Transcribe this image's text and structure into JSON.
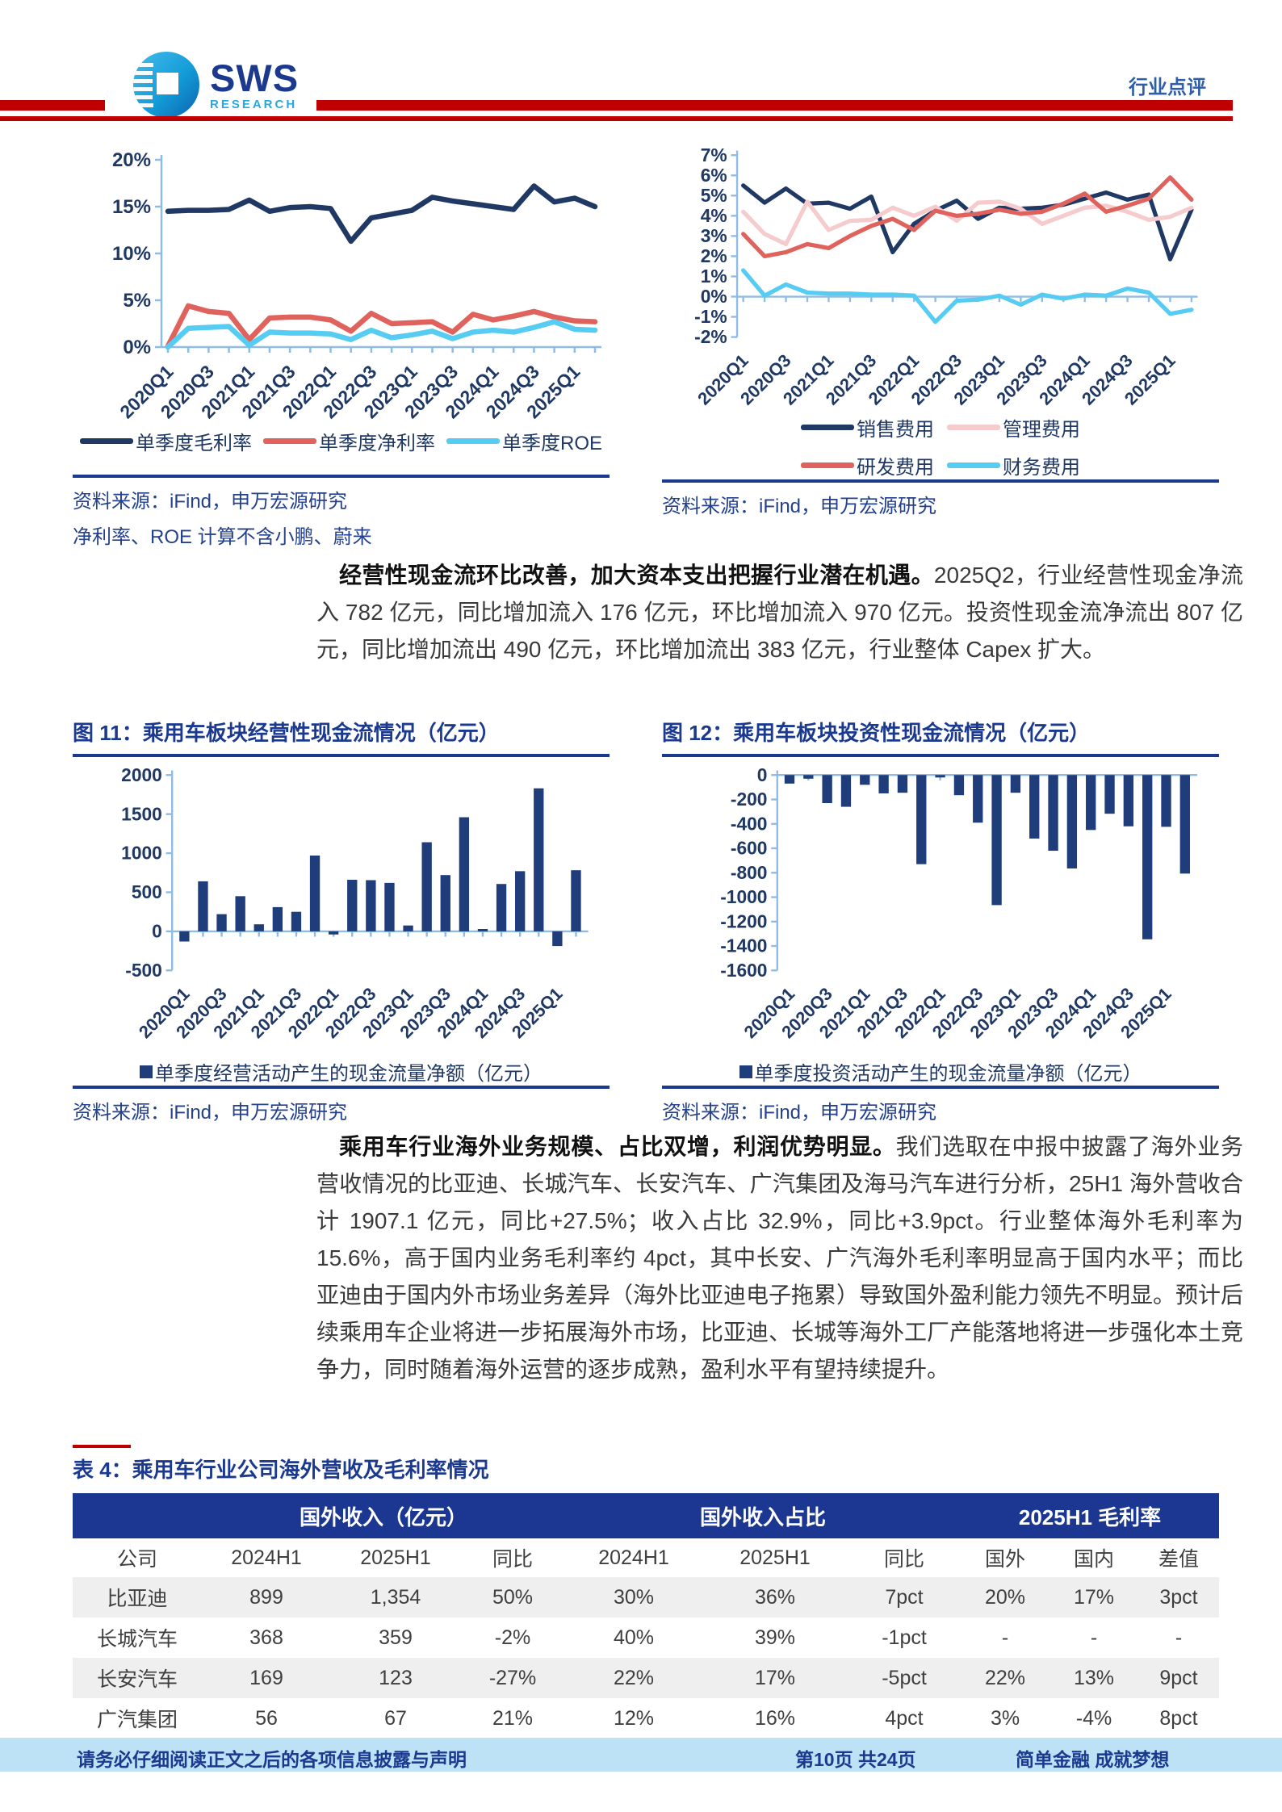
{
  "header": {
    "logo_main": "SWS",
    "logo_sub": "RESEARCH",
    "report_type": "行业点评"
  },
  "colors": {
    "navy": "#1F3864",
    "caption_blue": "#1B3A8F",
    "accent_red": "#C00000",
    "axis_blue": "#8FBCE6",
    "source_blue": "#24418E",
    "footer_bg": "#BDE2F6",
    "table_header_bg": "#1C3791",
    "row_alt": "#EFEFEF",
    "text": "#3A3A3A",
    "logo_blue": "#1B3A8F",
    "logo_light": "#29A8E0",
    "doc_type_blue": "#2E5EAA"
  },
  "figures": {
    "source": "资料来源：iFind，申万宏源研究",
    "margins_note": "净利率、ROE 计算不含小鹏、蔚来",
    "fig11_caption": "图 11：乘用车板块经营性现金流情况（亿元）",
    "fig12_caption": "图 12：乘用车板块投资性现金流情况（亿元）"
  },
  "paragraphs": [
    {
      "lead": "经营性现金流环比改善，加大资本支出把握行业潜在机遇。",
      "body": "2025Q2，行业经营性现金净流入 782 亿元，同比增加流入 176 亿元，环比增加流入 970 亿元。投资性现金流净流出 807 亿元，同比增加流出 490 亿元，环比增加流出 383 亿元，行业整体 Capex 扩大。"
    },
    {
      "lead": "乘用车行业海外业务规模、占比双增，利润优势明显。",
      "body": "我们选取在中报中披露了海外业务营收情况的比亚迪、长城汽车、长安汽车、广汽集团及海马汽车进行分析，25H1 海外营收合计 1907.1 亿元，同比+27.5%；收入占比 32.9%，同比+3.9pct。行业整体海外毛利率为 15.6%，高于国内业务毛利率约 4pct，其中长安、广汽海外毛利率明显高于国内水平；而比亚迪由于国内外市场业务差异（海外比亚迪电子拖累）导致国外盈利能力领先不明显。预计后续乘用车企业将进一步拓展海外市场，比亚迪、长城等海外工厂产能落地将进一步强化本土竞争力，同时随着海外运营的逐步成熟，盈利水平有望持续提升。"
    }
  ],
  "table": {
    "caption": "表 4：乘用车行业公司海外营收及毛利率情况",
    "group_headers": [
      "国外收入（亿元）",
      "国外收入占比",
      "2025H1 毛利率"
    ],
    "sub_headers": [
      "公司",
      "2024H1",
      "2025H1",
      "同比",
      "2024H1",
      "2025H1",
      "同比",
      "国外",
      "国内",
      "差值"
    ],
    "rows": [
      [
        "比亚迪",
        "899",
        "1,354",
        "50%",
        "30%",
        "36%",
        "7pct",
        "20%",
        "17%",
        "3pct"
      ],
      [
        "长城汽车",
        "368",
        "359",
        "-2%",
        "40%",
        "39%",
        "-1pct",
        "-",
        "-",
        "-"
      ],
      [
        "长安汽车",
        "169",
        "123",
        "-27%",
        "22%",
        "17%",
        "-5pct",
        "22%",
        "13%",
        "9pct"
      ],
      [
        "广汽集团",
        "56",
        "67",
        "21%",
        "12%",
        "16%",
        "4pct",
        "3%",
        "-4%",
        "8pct"
      ]
    ]
  },
  "footer": {
    "disclaimer": "请务必仔细阅读正文之后的各项信息披露与声明",
    "page": "第10页 共24页",
    "slogan": "简单金融 成就梦想"
  },
  "chart_data": [
    {
      "type": "line",
      "title": "单季度毛利率/净利率/ROE",
      "xlabel": "",
      "ylabel": "",
      "ylim": [
        0,
        20
      ],
      "ytick_step": 5,
      "ytick_suffix": "%",
      "xtick_every": 2,
      "grid": false,
      "legend_position": "bottom",
      "categories": [
        "2020Q1",
        "2020Q2",
        "2020Q3",
        "2020Q4",
        "2021Q1",
        "2021Q2",
        "2021Q3",
        "2021Q4",
        "2022Q1",
        "2022Q2",
        "2022Q3",
        "2022Q4",
        "2023Q1",
        "2023Q2",
        "2023Q3",
        "2023Q4",
        "2024Q1",
        "2024Q2",
        "2024Q3",
        "2024Q4",
        "2025Q1",
        "2025Q2"
      ],
      "series": [
        {
          "name": "单季度毛利率",
          "color": "#1F3864",
          "values": [
            14.5,
            14.6,
            14.6,
            14.7,
            15.7,
            14.5,
            14.9,
            15.0,
            14.8,
            11.3,
            13.8,
            14.2,
            14.6,
            16.0,
            15.6,
            15.3,
            15.0,
            14.7,
            17.2,
            15.5,
            15.9,
            15.0
          ]
        },
        {
          "name": "单季度净利率",
          "color": "#E0625C",
          "values": [
            0.1,
            4.4,
            3.8,
            3.6,
            0.8,
            3.1,
            3.2,
            3.2,
            2.9,
            1.7,
            3.6,
            2.5,
            2.6,
            2.7,
            1.6,
            3.5,
            2.9,
            3.3,
            3.8,
            3.2,
            2.8,
            2.7
          ]
        },
        {
          "name": "单季度ROE",
          "color": "#56CCF2",
          "values": [
            0.0,
            2.0,
            2.1,
            2.2,
            0.2,
            1.6,
            1.5,
            1.5,
            1.4,
            0.8,
            1.8,
            1.0,
            1.3,
            1.7,
            0.9,
            1.6,
            1.8,
            1.6,
            2.1,
            2.7,
            1.9,
            1.8
          ]
        }
      ]
    },
    {
      "type": "line",
      "title": "费用率",
      "xlabel": "",
      "ylabel": "",
      "ylim": [
        -2,
        7
      ],
      "ytick_step": 1,
      "ytick_suffix": "%",
      "xtick_every": 2,
      "grid": false,
      "legend_position": "bottom",
      "categories": [
        "2020Q1",
        "2020Q2",
        "2020Q3",
        "2020Q4",
        "2021Q1",
        "2021Q2",
        "2021Q3",
        "2021Q4",
        "2022Q1",
        "2022Q2",
        "2022Q3",
        "2022Q4",
        "2023Q1",
        "2023Q2",
        "2023Q3",
        "2023Q4",
        "2024Q1",
        "2024Q2",
        "2024Q3",
        "2024Q4",
        "2025Q1",
        "2025Q2"
      ],
      "series": [
        {
          "name": "销售费用",
          "color": "#1F3864",
          "values": [
            5.5,
            4.65,
            5.35,
            4.6,
            4.65,
            4.35,
            4.95,
            2.2,
            3.6,
            4.25,
            4.75,
            3.85,
            4.4,
            4.35,
            4.4,
            4.55,
            4.85,
            5.15,
            4.8,
            5.05,
            1.85,
            4.3
          ]
        },
        {
          "name": "管理费用",
          "color": "#F6CBCE",
          "values": [
            4.2,
            3.1,
            2.6,
            4.7,
            3.3,
            3.75,
            3.8,
            4.4,
            4.0,
            4.45,
            3.75,
            4.65,
            4.7,
            4.35,
            3.6,
            4.0,
            4.4,
            4.5,
            4.2,
            3.8,
            3.95,
            4.4
          ]
        },
        {
          "name": "研发费用",
          "color": "#E0625C",
          "values": [
            3.1,
            2.0,
            2.2,
            2.6,
            2.4,
            3.0,
            3.5,
            3.85,
            3.3,
            4.25,
            4.0,
            4.1,
            4.3,
            4.1,
            4.2,
            4.6,
            5.1,
            4.2,
            4.5,
            4.85,
            5.9,
            4.8
          ]
        },
        {
          "name": "财务费用",
          "color": "#56CCF2",
          "values": [
            1.3,
            0.05,
            0.6,
            0.2,
            0.15,
            0.15,
            0.1,
            0.1,
            0.05,
            -1.25,
            -0.2,
            -0.15,
            0.05,
            -0.4,
            0.1,
            -0.1,
            0.1,
            0.05,
            0.4,
            0.2,
            -0.85,
            -0.65
          ]
        }
      ]
    },
    {
      "type": "bar",
      "title": "乘用车板块经营性现金流情况（亿元）",
      "xlabel": "",
      "ylabel": "",
      "ylim": [
        -500,
        2000
      ],
      "ytick_step": 500,
      "ytick_suffix": "",
      "xtick_every": 2,
      "grid": false,
      "legend": "单季度经营活动产生的现金流量净额（亿元）",
      "bar_color": "#1F3D7A",
      "categories": [
        "2020Q1",
        "2020Q2",
        "2020Q3",
        "2020Q4",
        "2021Q1",
        "2021Q2",
        "2021Q3",
        "2021Q4",
        "2022Q1",
        "2022Q2",
        "2022Q3",
        "2022Q4",
        "2023Q1",
        "2023Q2",
        "2023Q3",
        "2023Q4",
        "2024Q1",
        "2024Q2",
        "2024Q3",
        "2024Q4",
        "2025Q1",
        "2025Q2"
      ],
      "values": [
        -130,
        640,
        220,
        450,
        90,
        310,
        250,
        970,
        -40,
        660,
        655,
        620,
        75,
        1140,
        720,
        1460,
        30,
        606,
        770,
        1830,
        -188,
        782
      ]
    },
    {
      "type": "bar",
      "title": "乘用车板块投资性现金流情况（亿元）",
      "xlabel": "",
      "ylabel": "",
      "ylim": [
        -1600,
        0
      ],
      "ytick_step": 200,
      "ytick_suffix": "",
      "xtick_every": 2,
      "grid": false,
      "legend": "单季度投资活动产生的现金流量净额（亿元）",
      "bar_color": "#1F3D7A",
      "categories": [
        "2020Q1",
        "2020Q2",
        "2020Q3",
        "2020Q4",
        "2021Q1",
        "2021Q2",
        "2021Q3",
        "2021Q4",
        "2022Q1",
        "2022Q2",
        "2022Q3",
        "2022Q4",
        "2023Q1",
        "2023Q2",
        "2023Q3",
        "2023Q4",
        "2024Q1",
        "2024Q2",
        "2024Q3",
        "2024Q4",
        "2025Q1",
        "2025Q2"
      ],
      "values": [
        -70,
        -30,
        -230,
        -260,
        -80,
        -150,
        -145,
        -730,
        -20,
        -165,
        -390,
        -1065,
        -145,
        -520,
        -620,
        -765,
        -450,
        -317,
        -420,
        -1345,
        -424,
        -807
      ]
    }
  ]
}
